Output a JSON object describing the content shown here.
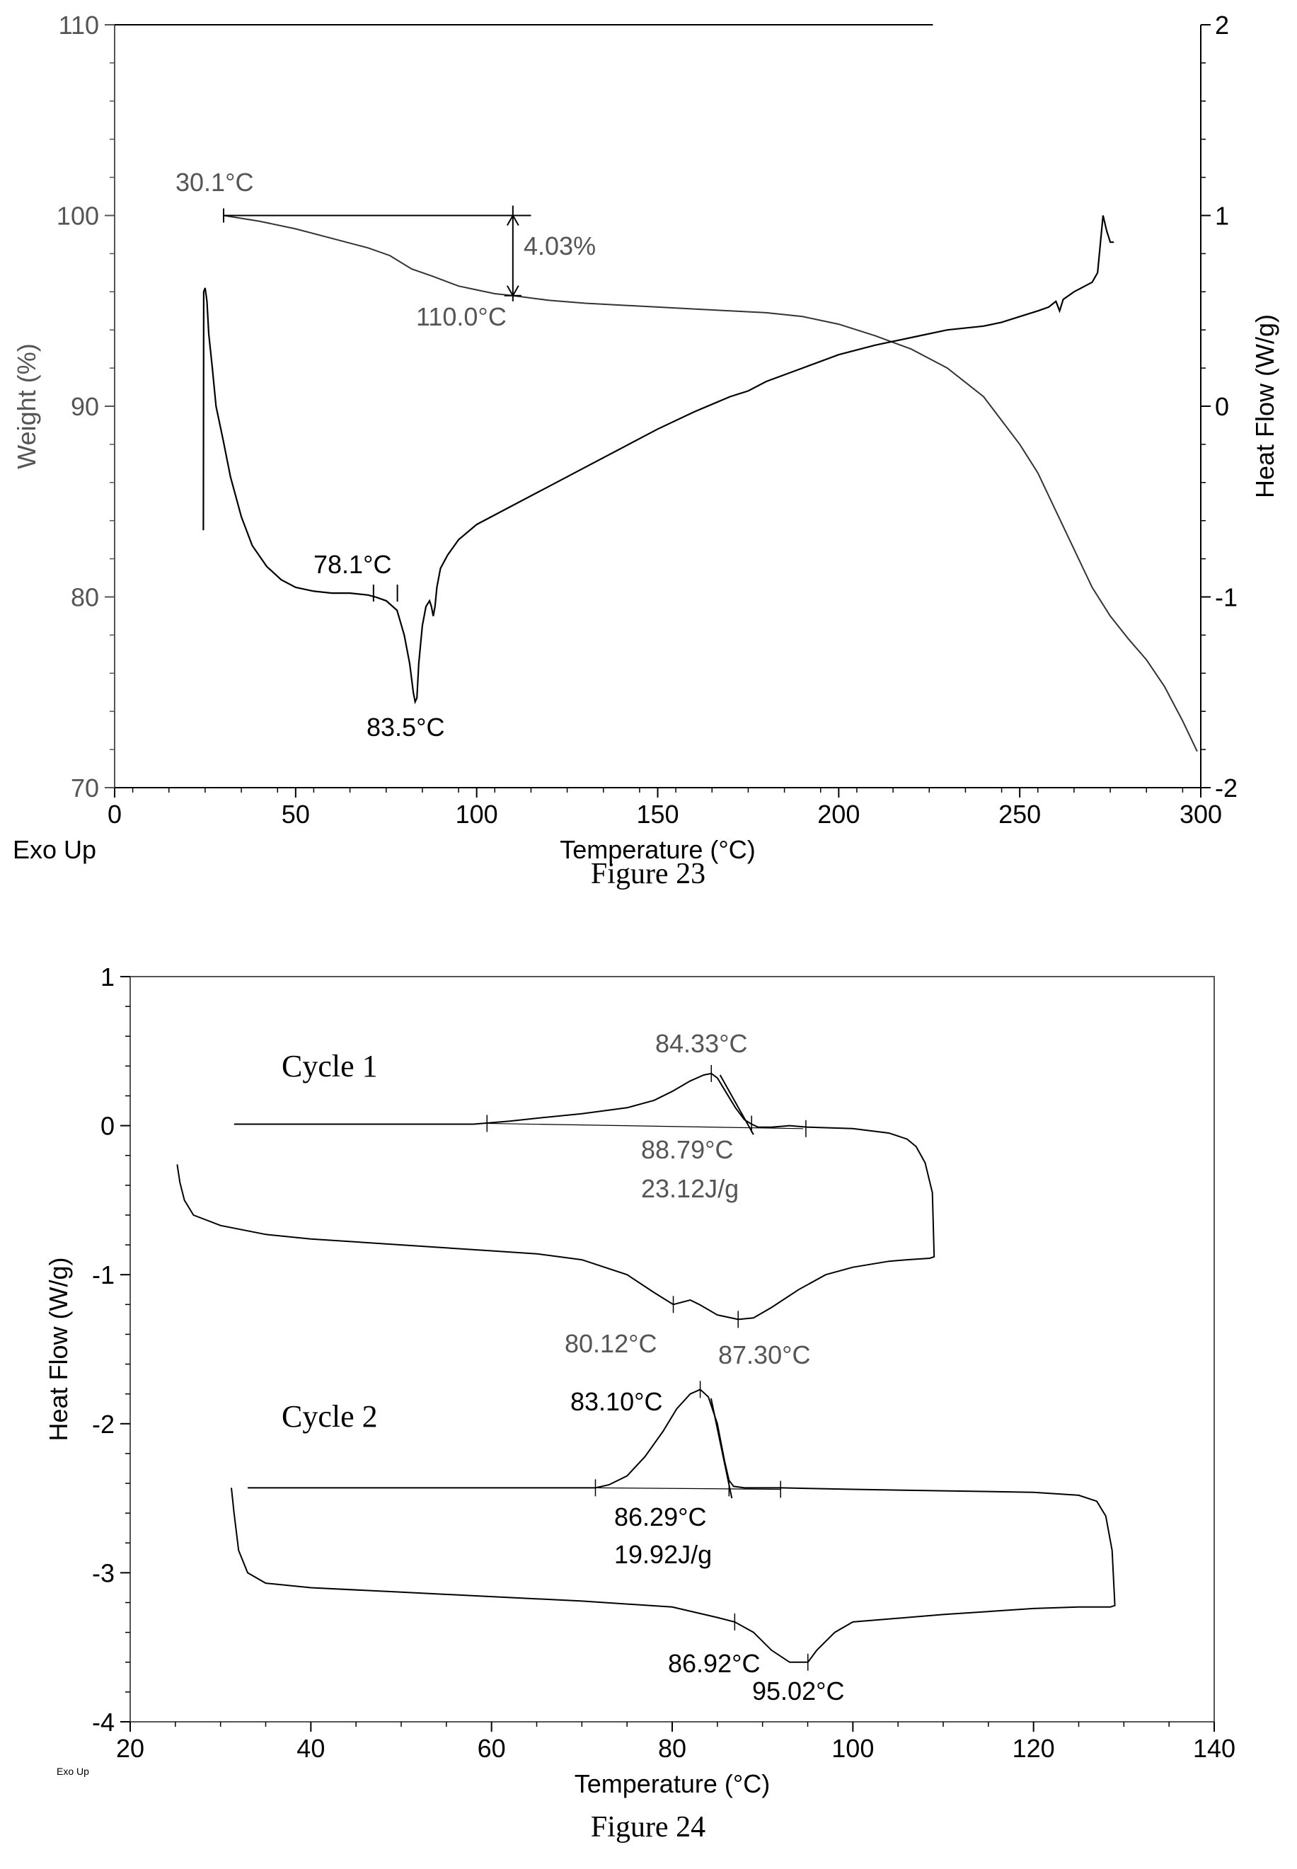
{
  "chart_data": [
    {
      "type": "line",
      "caption": "Figure 23",
      "xlabel": "Temperature (°C)",
      "ylabel_left": "Weight (%)",
      "ylabel_right": "Heat Flow (W/g)",
      "corner_label": "Exo Up",
      "xlim": [
        0,
        300
      ],
      "ylim_left": [
        70,
        110
      ],
      "ylim_right": [
        -2,
        2
      ],
      "x_ticks": [
        0,
        50,
        100,
        150,
        200,
        250,
        300
      ],
      "y_left_ticks": [
        70,
        80,
        90,
        100,
        110
      ],
      "y_right_ticks": [
        -2,
        -1,
        0,
        1,
        2
      ],
      "series": [
        {
          "axis": "left",
          "x": [
            30.1,
            40,
            50,
            60,
            70,
            76,
            82,
            88,
            95,
            100,
            105,
            110,
            120,
            130,
            140,
            150,
            160,
            170,
            180,
            190,
            200,
            210,
            220,
            230,
            240,
            250,
            255,
            260,
            265,
            270,
            275,
            280,
            285,
            290,
            295,
            299
          ],
          "y": [
            100,
            99.7,
            99.3,
            98.8,
            98.3,
            97.9,
            97.2,
            96.8,
            96.3,
            96.1,
            95.9,
            95.8,
            95.55,
            95.4,
            95.3,
            95.2,
            95.1,
            95.0,
            94.9,
            94.7,
            94.3,
            93.7,
            93.0,
            92.0,
            90.5,
            88.0,
            86.5,
            84.5,
            82.5,
            80.5,
            79.0,
            77.8,
            76.7,
            75.3,
            73.5,
            71.9
          ]
        },
        {
          "axis": "right",
          "x": [
            24.5,
            24.6,
            25,
            25.5,
            26,
            27,
            28,
            30,
            32,
            35,
            38,
            42,
            46,
            50,
            55,
            60,
            65,
            70,
            72,
            75,
            78,
            80,
            81.5,
            82.5,
            83,
            83.5,
            84,
            85,
            86,
            87,
            87.5,
            88,
            88.5,
            89,
            90,
            92,
            95,
            100,
            110,
            120,
            130,
            140,
            150,
            160,
            170,
            175,
            180,
            190,
            200,
            210,
            220,
            230,
            240,
            245,
            250,
            255,
            258,
            260,
            261,
            262,
            265,
            268,
            270,
            271.5,
            272.5,
            273,
            274,
            275,
            276
          ],
          "y": [
            -0.65,
            0.6,
            0.62,
            0.55,
            0.38,
            0.2,
            0.0,
            -0.18,
            -0.37,
            -0.58,
            -0.73,
            -0.84,
            -0.91,
            -0.95,
            -0.97,
            -0.98,
            -0.98,
            -0.99,
            -1.0,
            -1.02,
            -1.07,
            -1.2,
            -1.35,
            -1.5,
            -1.55,
            -1.53,
            -1.35,
            -1.15,
            -1.05,
            -1.02,
            -1.05,
            -1.1,
            -1.05,
            -0.95,
            -0.85,
            -0.78,
            -0.7,
            -0.62,
            -0.52,
            -0.42,
            -0.32,
            -0.22,
            -0.12,
            -0.03,
            0.05,
            0.08,
            0.13,
            0.2,
            0.27,
            0.32,
            0.36,
            0.4,
            0.42,
            0.44,
            0.47,
            0.5,
            0.52,
            0.55,
            0.5,
            0.56,
            0.6,
            0.63,
            0.65,
            0.7,
            0.9,
            1.0,
            0.92,
            0.86,
            0.86
          ]
        },
        {
          "axis": "left",
          "x": [
            0,
            226
          ],
          "y": [
            110,
            110
          ]
        }
      ],
      "annotations": [
        {
          "text": "30.1°C",
          "x": 30.1,
          "y": 100
        },
        {
          "text": "4.03%",
          "x": 110,
          "y": 98
        },
        {
          "text": "110.0°C",
          "x": 110,
          "y": 95.8
        },
        {
          "text": "78.1°C",
          "x": 78.1,
          "y": 80
        },
        {
          "text": "83.5°C",
          "x": 83.5,
          "y": 74.5
        }
      ]
    },
    {
      "type": "line",
      "caption": "Figure 24",
      "xlabel": "Temperature (°C)",
      "ylabel": "Heat Flow (W/g)",
      "corner_label": "Exo Up",
      "xlim": [
        20,
        140
      ],
      "ylim": [
        -4,
        1
      ],
      "x_ticks": [
        20,
        40,
        60,
        80,
        100,
        120,
        140
      ],
      "y_ticks": [
        -4,
        -3,
        -2,
        -1,
        0,
        1
      ],
      "series": [
        {
          "name": "Cycle 1",
          "x": [
            31.5,
            40,
            50,
            58,
            60,
            62,
            65,
            70,
            75,
            78,
            80,
            82,
            83.5,
            84.33,
            85,
            86,
            87,
            88,
            88.79,
            89.5,
            91,
            93,
            95,
            100,
            104,
            106,
            107,
            108,
            108.8,
            109,
            108.5,
            106,
            104,
            100,
            97,
            94,
            91,
            89,
            87.3,
            85,
            83,
            82,
            80.12,
            78,
            75,
            70,
            65,
            60,
            50,
            40,
            35,
            30,
            27,
            26,
            25.5,
            25.2
          ],
          "y": [
            0.01,
            0.01,
            0.01,
            0.01,
            0.02,
            0.03,
            0.05,
            0.08,
            0.12,
            0.17,
            0.23,
            0.3,
            0.34,
            0.35,
            0.32,
            0.22,
            0.12,
            0.04,
            0.01,
            -0.01,
            -0.01,
            0.0,
            -0.01,
            -0.02,
            -0.05,
            -0.09,
            -0.14,
            -0.25,
            -0.45,
            -0.88,
            -0.89,
            -0.9,
            -0.91,
            -0.95,
            -1.0,
            -1.1,
            -1.22,
            -1.29,
            -1.3,
            -1.27,
            -1.2,
            -1.17,
            -1.2,
            -1.12,
            -1.0,
            -0.9,
            -0.86,
            -0.84,
            -0.8,
            -0.76,
            -0.73,
            -0.67,
            -0.6,
            -0.5,
            -0.38,
            -0.26
          ]
        },
        {
          "name": "Cycle 2",
          "x": [
            33,
            50,
            60,
            70,
            71.5,
            73,
            75,
            77,
            79,
            80.5,
            82,
            83.1,
            84,
            85,
            85.8,
            86.29,
            86.8,
            88,
            92,
            100,
            110,
            120,
            125,
            127,
            128,
            128.7,
            129,
            128.5,
            125,
            120,
            110,
            100,
            98,
            96,
            95.02,
            93,
            91,
            89,
            86.92,
            85,
            80,
            70,
            60,
            50,
            40,
            35,
            33,
            32,
            31.5,
            31.2
          ],
          "y": [
            -2.43,
            -2.43,
            -2.43,
            -2.43,
            -2.43,
            -2.41,
            -2.35,
            -2.22,
            -2.05,
            -1.9,
            -1.8,
            -1.77,
            -1.82,
            -2.0,
            -2.25,
            -2.38,
            -2.42,
            -2.43,
            -2.43,
            -2.44,
            -2.45,
            -2.46,
            -2.48,
            -2.52,
            -2.62,
            -2.85,
            -3.22,
            -3.23,
            -3.23,
            -3.24,
            -3.28,
            -3.33,
            -3.4,
            -3.52,
            -3.6,
            -3.6,
            -3.52,
            -3.4,
            -3.33,
            -3.3,
            -3.23,
            -3.19,
            -3.16,
            -3.13,
            -3.1,
            -3.07,
            -3.0,
            -2.85,
            -2.6,
            -2.43
          ]
        }
      ],
      "annotations": [
        {
          "text": "Cycle 1",
          "x": 34,
          "y": 0.28
        },
        {
          "text": "84.33°C",
          "x": 84.33,
          "y": 0.35
        },
        {
          "text": "88.79°C",
          "x": 88.79,
          "y": 0.01
        },
        {
          "text": "23.12J/g",
          "x": 88.79,
          "y": -0.2
        },
        {
          "text": "80.12°C",
          "x": 80.12,
          "y": -1.2
        },
        {
          "text": "87.30°C",
          "x": 87.3,
          "y": -1.3
        },
        {
          "text": "Cycle 2",
          "x": 34,
          "y": -2.0
        },
        {
          "text": "83.10°C",
          "x": 83.1,
          "y": -1.77
        },
        {
          "text": "86.29°C",
          "x": 86.29,
          "y": -2.43
        },
        {
          "text": "19.92J/g",
          "x": 86.29,
          "y": -2.63
        },
        {
          "text": "86.92°C",
          "x": 86.92,
          "y": -3.33
        },
        {
          "text": "95.02°C",
          "x": 95.02,
          "y": -3.6
        }
      ]
    }
  ]
}
